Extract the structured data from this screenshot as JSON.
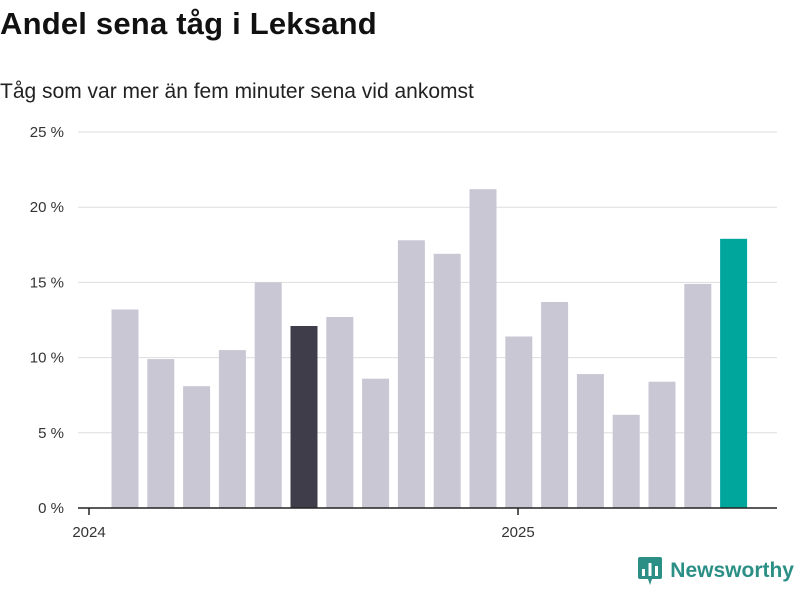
{
  "title": "Andel sena tåg i Leksand",
  "subtitle": "Tåg som var mer än fem minuter sena vid ankomst",
  "logo": {
    "text": "Newsworthy",
    "icon": "newsworthy-logo-icon",
    "color": "#2b8f86"
  },
  "colors": {
    "default": "#c8c7d3",
    "highlight": "#3f3d4a",
    "latest": "#00a69c",
    "grid": "#dddddd",
    "axis": "#222222"
  },
  "chart_data": {
    "type": "bar",
    "title": "Andel sena tåg i Leksand",
    "subtitle": "Tåg som var mer än fem minuter sena vid ankomst",
    "unit": "%",
    "x": [
      "2024-01",
      "2024-02",
      "2024-03",
      "2024-04",
      "2024-05",
      "2024-06",
      "2024-07",
      "2024-08",
      "2024-09",
      "2024-10",
      "2024-11",
      "2024-12",
      "2025-01",
      "2025-02",
      "2025-03",
      "2025-04",
      "2025-05",
      "2025-06"
    ],
    "values": [
      13.2,
      9.9,
      8.1,
      10.5,
      15.0,
      12.1,
      12.7,
      8.6,
      17.8,
      16.9,
      21.2,
      11.4,
      13.7,
      8.9,
      6.2,
      8.4,
      14.9,
      17.9
    ],
    "bar_colors": [
      "default",
      "default",
      "default",
      "default",
      "default",
      "highlight",
      "default",
      "default",
      "default",
      "default",
      "default",
      "default",
      "default",
      "default",
      "default",
      "default",
      "default",
      "latest"
    ],
    "x_ticks": [
      "2024",
      "2025"
    ],
    "y_ticks": [
      "0 %",
      "5 %",
      "10 %",
      "15 %",
      "20 %",
      "25 %"
    ],
    "ylim": [
      0,
      25
    ],
    "grid": true,
    "legend": "none"
  }
}
